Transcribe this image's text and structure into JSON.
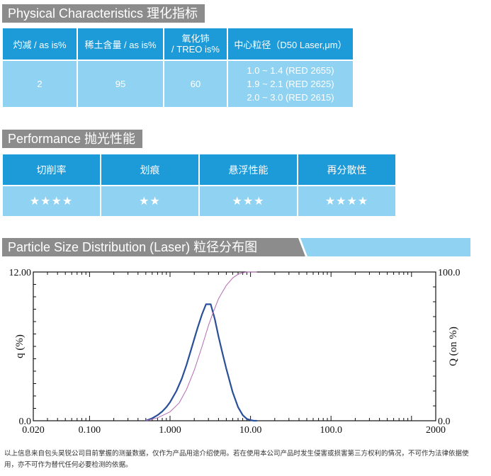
{
  "physical": {
    "title": "Physical Characteristics  理化指标",
    "headers": [
      "灼减 / as is%",
      "稀土含量 / as is%",
      "氧化铈\n/ TREO is%",
      "中心粒径（D50 Laser,μm）"
    ],
    "values": [
      "2",
      "95",
      "60"
    ],
    "d50": [
      "1.0 ~ 1.4 (RED 2655)",
      "1.9 ~ 2.1 (RED 2625)",
      "2.0 ~ 3.0 (RED 2615)"
    ]
  },
  "performance": {
    "title": "Performance  抛光性能",
    "headers": [
      "切削率",
      "划痕",
      "悬浮性能",
      "再分散性"
    ],
    "ratings": [
      "★★★★",
      "★★",
      "★★★",
      "★★★★"
    ]
  },
  "distribution": {
    "title": "Particle Size Distribution (Laser)  粒径分布图"
  },
  "colors": {
    "header_blue": "#1d9ad8",
    "cell_blue": "#8fd2f1",
    "title_grey": "#8c8c8c",
    "banner_blue": "#8fd2f1",
    "q_line": "#2a4f9a",
    "Q_line": "#b46ab4"
  },
  "chart_data": {
    "type": "line",
    "x_scale": "log",
    "xlim": [
      0.02,
      2000
    ],
    "x_ticks": [
      "0.020",
      "0.100",
      "1.000",
      "10.00",
      "100.0",
      "2000"
    ],
    "x_tick_values": [
      0.02,
      0.1,
      1,
      10,
      100,
      2000
    ],
    "ylim_left": [
      0,
      12
    ],
    "y_left_ticks": [
      "0.0",
      "12.00"
    ],
    "ylim_right": [
      0,
      100
    ],
    "y_right_ticks": [
      "0.0",
      "100.0"
    ],
    "ylabel_left": "q (%)",
    "ylabel_right": "Q (on %)",
    "grid": false,
    "series": [
      {
        "axis": "left",
        "color": "#2a4f9a",
        "x": [
          0.5,
          0.6,
          0.7,
          0.8,
          0.9,
          1.0,
          1.2,
          1.4,
          1.6,
          1.8,
          2.0,
          2.2,
          2.5,
          2.8,
          3.2,
          3.6,
          4.0,
          4.5,
          5.0,
          6.0,
          7.0,
          8.0,
          9.0,
          10.0,
          11.0,
          12.0
        ],
        "y": [
          0.0,
          0.2,
          0.45,
          0.75,
          1.1,
          1.5,
          2.4,
          3.4,
          4.5,
          5.6,
          6.6,
          7.5,
          8.6,
          9.4,
          9.4,
          8.2,
          6.8,
          5.4,
          4.2,
          2.3,
          1.1,
          0.45,
          0.15,
          0.05,
          0.0,
          0.0
        ]
      },
      {
        "axis": "right",
        "color": "#b46ab4",
        "x": [
          0.5,
          0.7,
          1.0,
          1.3,
          1.6,
          2.0,
          2.5,
          3.0,
          3.5,
          4.0,
          5.0,
          6.0,
          7.0,
          8.0,
          9.0,
          10.0,
          12.0
        ],
        "y": [
          0,
          2,
          6,
          12,
          21,
          34,
          50,
          64,
          74,
          82,
          91,
          96,
          98.5,
          99.5,
          100,
          100,
          100
        ]
      }
    ]
  },
  "note": "以上信息来自包头昊锐公司目前掌握的测量数据，仅作为产品用途介绍使用。若在使用本公司产品时发生侵害或损害第三方权利的情况，不可作为法律依据使用，亦不可作为替代任何必要检测的依据。"
}
